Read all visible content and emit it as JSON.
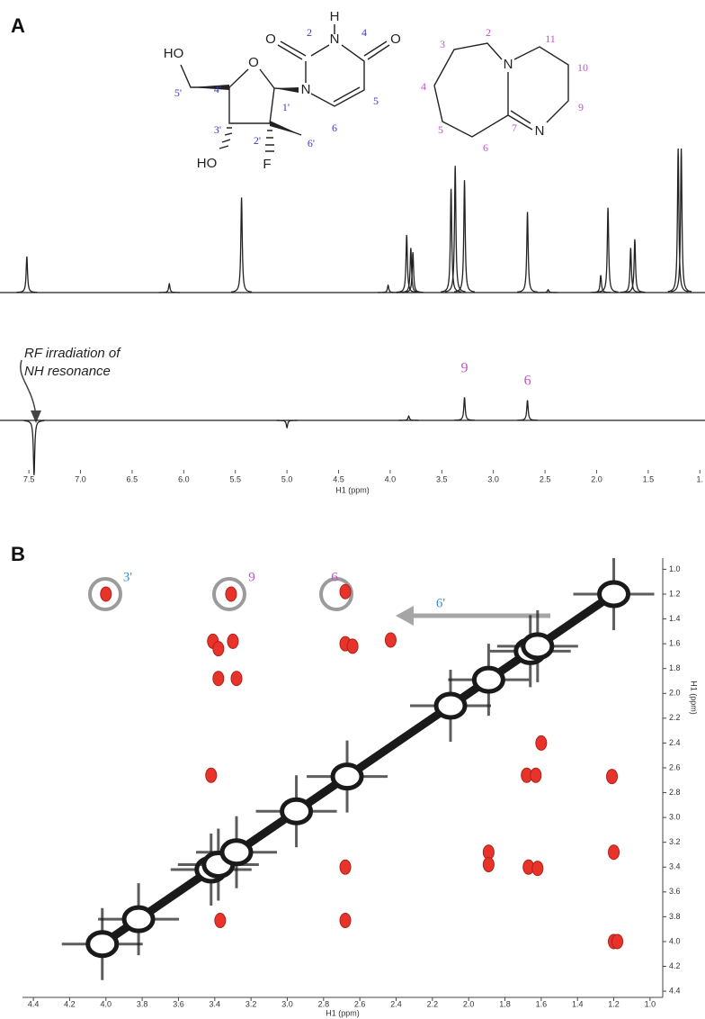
{
  "panels": [
    "A",
    "B"
  ],
  "structures": {
    "uridine": {
      "atoms": [
        "HO",
        "O",
        "N",
        "H",
        "O",
        "O",
        "N",
        "HO",
        "F"
      ],
      "locants": [
        "2",
        "4",
        "5",
        "6",
        "1'",
        "2'",
        "3'",
        "4'",
        "5'",
        "6'"
      ]
    },
    "dbu": {
      "atoms": [
        "N",
        "N"
      ],
      "locants": [
        "2",
        "3",
        "4",
        "5",
        "6",
        "7",
        "9",
        "10",
        "11"
      ]
    }
  },
  "chart_data": [
    {
      "type": "spectrum",
      "color": "#222222",
      "x": [
        7.52,
        6.14,
        5.44,
        4.02,
        3.84,
        3.8,
        3.78,
        3.41,
        3.37,
        3.28,
        2.67,
        2.47,
        1.96,
        1.89,
        1.67,
        1.63,
        1.21,
        1.18
      ],
      "values": [
        25,
        6,
        66,
        5,
        40,
        31,
        28,
        72,
        88,
        78,
        56,
        2,
        12,
        59,
        31,
        37,
        100,
        100
      ],
      "xlim": [
        7.78,
        0.95
      ]
    },
    {
      "type": "spectrum",
      "color": "#222222",
      "x_title": "H1 (ppm)",
      "x": [
        7.45,
        5.0,
        3.82,
        3.28,
        2.67
      ],
      "values": [
        -38,
        -5,
        3,
        16,
        14
      ],
      "xlim": [
        7.78,
        0.95
      ],
      "xticks": [
        7.5,
        {
          "value": 7,
          "label": "7.0"
        },
        6.5,
        {
          "value": 6,
          "label": "6.0"
        },
        5.5,
        {
          "value": 5,
          "label": "5.0"
        },
        4.5,
        {
          "value": 4,
          "label": "4.0"
        },
        3.5,
        {
          "value": 3,
          "label": "3.0"
        },
        2.5,
        {
          "value": 2,
          "label": "2.0"
        },
        1.5,
        {
          "value": 1,
          "label": "1."
        }
      ],
      "annotations": [
        "RF irradiation of",
        "NH resonance"
      ],
      "peak_labels": [
        "9",
        "6"
      ]
    },
    {
      "type": "scatter",
      "x_title": "H1 (ppm)",
      "y_title": "H1 (ppm)",
      "xlim": [
        4.46,
        0.93
      ],
      "ylim": [
        0.91,
        4.45
      ],
      "xticks": [
        4.4,
        4.2,
        {
          "value": 4,
          "label": "4.0"
        },
        3.8,
        3.6,
        3.4,
        3.2,
        {
          "value": 3,
          "label": "3.0"
        },
        2.8,
        2.6,
        2.4,
        2.2,
        {
          "value": 2,
          "label": "2.0"
        },
        1.8,
        1.6,
        1.4,
        1.2,
        {
          "value": 1,
          "label": "1.0"
        }
      ],
      "yticks": [
        {
          "value": 1,
          "label": "1.0"
        },
        1.2,
        1.4,
        1.6,
        1.8,
        {
          "value": 2,
          "label": "2.0"
        },
        2.2,
        2.4,
        2.6,
        2.8,
        {
          "value": 3,
          "label": "3.0"
        },
        3.2,
        3.4,
        3.6,
        3.8,
        {
          "value": 4,
          "label": "4.0"
        },
        4.2,
        4.4
      ],
      "series": [
        {
          "color": "#1a1a1a",
          "x": [
            4.02,
            3.82,
            3.42,
            3.38,
            3.28,
            2.95,
            2.67,
            2.1,
            1.89,
            1.66,
            1.62,
            1.2
          ],
          "values": [
            4.02,
            3.82,
            3.42,
            3.38,
            3.28,
            2.95,
            2.67,
            2.1,
            1.89,
            1.66,
            1.62,
            1.2
          ]
        },
        {
          "color": "#e8332a",
          "x": [
            4.0,
            3.31,
            2.68,
            3.41,
            3.38,
            3.3,
            3.38,
            3.28,
            2.68,
            2.64,
            2.43,
            3.42,
            2.68,
            1.89,
            1.89,
            1.67,
            1.62,
            1.68,
            1.63,
            1.2,
            1.18,
            1.21,
            1.2,
            3.37,
            2.68,
            1.6
          ],
          "values": [
            1.2,
            1.2,
            1.18,
            1.58,
            1.64,
            1.58,
            1.88,
            1.88,
            1.6,
            1.62,
            1.57,
            2.66,
            3.4,
            3.28,
            3.38,
            3.4,
            3.41,
            2.66,
            2.66,
            4.0,
            4.0,
            2.67,
            3.28,
            3.83,
            3.83,
            2.4
          ]
        }
      ],
      "annotations": [
        "3'",
        "9",
        "6",
        "6'"
      ]
    }
  ]
}
